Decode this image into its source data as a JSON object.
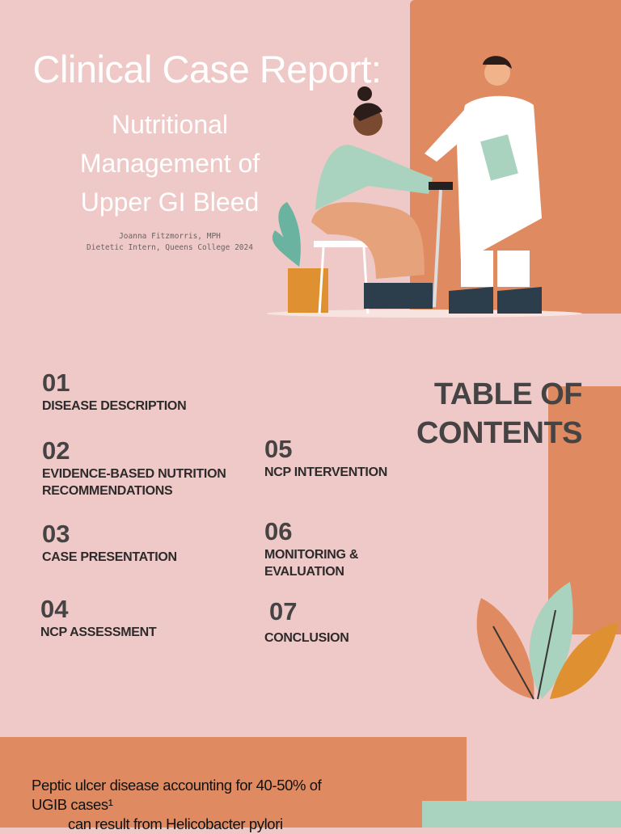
{
  "header": {
    "title": "Clinical Case Report:",
    "subtitle_lines": [
      "Nutritional",
      "Management of",
      "Upper GI Bleed"
    ],
    "author": "Joanna Fitzmorris, MPH",
    "affiliation": "Dietetic Intern, Queens College 2024"
  },
  "toc": {
    "heading_lines": [
      "TABLE OF",
      "CONTENTS"
    ],
    "items": [
      {
        "num": "01",
        "label": "DISEASE DESCRIPTION"
      },
      {
        "num": "02",
        "label": "EVIDENCE-BASED NUTRITION RECOMMENDATIONS"
      },
      {
        "num": "03",
        "label": "CASE PRESENTATION"
      },
      {
        "num": "04",
        "label": "NCP ASSESSMENT"
      },
      {
        "num": "05",
        "label": "NCP INTERVENTION"
      },
      {
        "num": "06",
        "label": "MONITORING & EVALUATION"
      },
      {
        "num": "07",
        "label": "CONCLUSION"
      }
    ]
  },
  "bottom": {
    "line1": "Peptic ulcer disease accounting for 40-50% of",
    "line2": "UGIB cases¹",
    "line3": "can result from Helicobacter pylori"
  },
  "colors": {
    "background": "#efc9c7",
    "orange": "#df8a60",
    "mint": "#a9d3be",
    "text": "#454343"
  }
}
